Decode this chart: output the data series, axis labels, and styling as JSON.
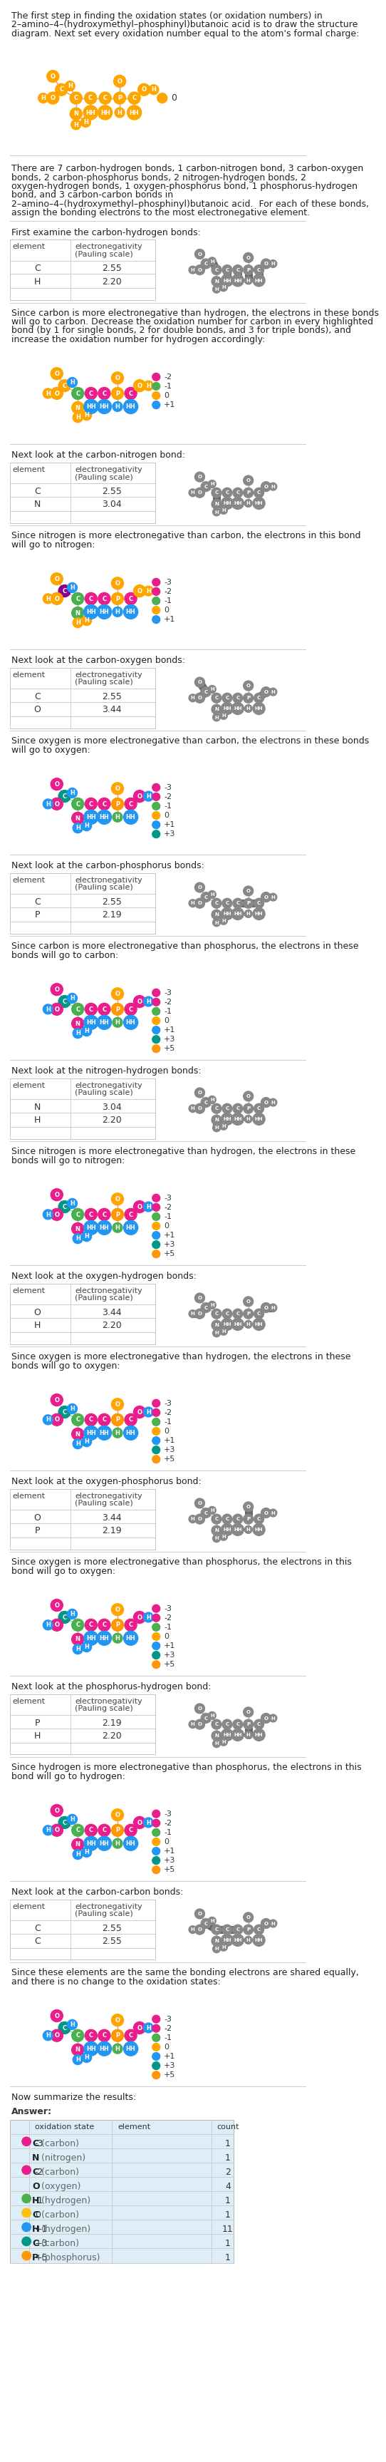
{
  "title_text": "The first step in finding the oxidation states (or oxidation numbers) in\n2–amino–4–(hydroxymethyl–phosphinyl)butanoic acid is to draw the structure\ndiagram. Next set every oxidation number equal to the atom's formal charge:",
  "bond_text": "There are 7 carbon-hydrogen bonds, 1 carbon-nitrogen bond, 3 carbon-oxygen\nbonds, 2 carbon-phosphorus bonds, 2 nitrogen-hydrogen bonds, 2\noxygen-hydrogen bonds, 1 oxygen-phosphorus bond, 1 phosphorus-hydrogen\nbond, and 3 carbon-carbon bonds in\n2–amino–4–(hydroxymethyl–phosphinyl)butanoic acid.  For each of these bonds,\nassign the bonding electrons to the most electronegative element.",
  "sections": [
    {
      "intro": "First examine the carbon-hydrogen bonds:",
      "element1": "C",
      "en1": 2.55,
      "element2": "H",
      "en2": 2.2,
      "conclusion": "Since carbon is more electronegative than hydrogen, the electrons in these bonds\nwill go to carbon. Decrease the oxidation number for carbon in every highlighted\nbond (by 1 for single bonds, 2 for double bonds, and 3 for triple bonds), and\nincrease the oxidation number for hydrogen accordingly:",
      "diagram_type": "CH",
      "result_legend": [
        {
          "color": "#e91e8c",
          "label": "-2"
        },
        {
          "color": "#4caf50",
          "label": "-1"
        },
        {
          "color": "#FFA500",
          "label": "0"
        },
        {
          "color": "#2196f3",
          "label": "+1"
        }
      ]
    },
    {
      "intro": "Next look at the carbon-nitrogen bond:",
      "element1": "C",
      "en1": 2.55,
      "element2": "N",
      "en2": 3.04,
      "conclusion": "Since nitrogen is more electronegative than carbon, the electrons in this bond\nwill go to nitrogen:",
      "diagram_type": "CN",
      "result_legend": [
        {
          "color": "#e91e8c",
          "label": "-3"
        },
        {
          "color": "#e91e8c",
          "label": "-2"
        },
        {
          "color": "#4caf50",
          "label": "-1"
        },
        {
          "color": "#FFA500",
          "label": "0"
        },
        {
          "color": "#2196f3",
          "label": "+1"
        }
      ]
    },
    {
      "intro": "Next look at the carbon-oxygen bonds:",
      "element1": "C",
      "en1": 2.55,
      "element2": "O",
      "en2": 3.44,
      "conclusion": "Since oxygen is more electronegative than carbon, the electrons in these bonds\nwill go to oxygen:",
      "diagram_type": "CO",
      "result_legend": [
        {
          "color": "#e91e8c",
          "label": "-3"
        },
        {
          "color": "#e91e8c",
          "label": "-2"
        },
        {
          "color": "#4caf50",
          "label": "-1"
        },
        {
          "color": "#FFA500",
          "label": "0"
        },
        {
          "color": "#2196f3",
          "label": "+1"
        },
        {
          "color": "#009688",
          "label": "+3"
        }
      ]
    },
    {
      "intro": "Next look at the carbon-phosphorus bonds:",
      "element1": "C",
      "en1": 2.55,
      "element2": "P",
      "en2": 2.19,
      "conclusion": "Since carbon is more electronegative than phosphorus, the electrons in these\nbonds will go to carbon:",
      "diagram_type": "CP",
      "result_legend": [
        {
          "color": "#e91e8c",
          "label": "-3"
        },
        {
          "color": "#e91e8c",
          "label": "-2"
        },
        {
          "color": "#4caf50",
          "label": "-1"
        },
        {
          "color": "#FFA500",
          "label": "0"
        },
        {
          "color": "#2196f3",
          "label": "+1"
        },
        {
          "color": "#009688",
          "label": "+3"
        },
        {
          "color": "#ff9800",
          "label": "+5"
        }
      ]
    },
    {
      "intro": "Next look at the nitrogen-hydrogen bonds:",
      "element1": "N",
      "en1": 3.04,
      "element2": "H",
      "en2": 2.2,
      "conclusion": "Since nitrogen is more electronegative than hydrogen, the electrons in these\nbonds will go to nitrogen:",
      "diagram_type": "NH",
      "result_legend": [
        {
          "color": "#e91e8c",
          "label": "-3"
        },
        {
          "color": "#e91e8c",
          "label": "-2"
        },
        {
          "color": "#4caf50",
          "label": "-1"
        },
        {
          "color": "#FFA500",
          "label": "0"
        },
        {
          "color": "#2196f3",
          "label": "+1"
        },
        {
          "color": "#009688",
          "label": "+3"
        },
        {
          "color": "#ff9800",
          "label": "+5"
        }
      ]
    },
    {
      "intro": "Next look at the oxygen-hydrogen bonds:",
      "element1": "O",
      "en1": 3.44,
      "element2": "H",
      "en2": 2.2,
      "conclusion": "Since oxygen is more electronegative than hydrogen, the electrons in these\nbonds will go to oxygen:",
      "diagram_type": "OH",
      "result_legend": [
        {
          "color": "#e91e8c",
          "label": "-3"
        },
        {
          "color": "#e91e8c",
          "label": "-2"
        },
        {
          "color": "#4caf50",
          "label": "-1"
        },
        {
          "color": "#FFA500",
          "label": "0"
        },
        {
          "color": "#2196f3",
          "label": "+1"
        },
        {
          "color": "#009688",
          "label": "+3"
        },
        {
          "color": "#ff9800",
          "label": "+5"
        }
      ]
    },
    {
      "intro": "Next look at the oxygen-phosphorus bond:",
      "element1": "O",
      "en1": 3.44,
      "element2": "P",
      "en2": 2.19,
      "conclusion": "Since oxygen is more electronegative than phosphorus, the electrons in this\nbond will go to oxygen:",
      "diagram_type": "OP",
      "result_legend": [
        {
          "color": "#e91e8c",
          "label": "-3"
        },
        {
          "color": "#e91e8c",
          "label": "-2"
        },
        {
          "color": "#4caf50",
          "label": "-1"
        },
        {
          "color": "#FFA500",
          "label": "0"
        },
        {
          "color": "#2196f3",
          "label": "+1"
        },
        {
          "color": "#009688",
          "label": "+3"
        },
        {
          "color": "#ff9800",
          "label": "+5"
        }
      ]
    },
    {
      "intro": "Next look at the phosphorus-hydrogen bond:",
      "element1": "P",
      "en1": 2.19,
      "element2": "H",
      "en2": 2.2,
      "conclusion": "Since hydrogen is more electronegative than phosphorus, the electrons in this\nbond will go to hydrogen:",
      "diagram_type": "PH",
      "result_legend": [
        {
          "color": "#e91e8c",
          "label": "-3"
        },
        {
          "color": "#e91e8c",
          "label": "-2"
        },
        {
          "color": "#4caf50",
          "label": "-1"
        },
        {
          "color": "#FFA500",
          "label": "0"
        },
        {
          "color": "#2196f3",
          "label": "+1"
        },
        {
          "color": "#009688",
          "label": "+3"
        },
        {
          "color": "#ff9800",
          "label": "+5"
        }
      ]
    },
    {
      "intro": "Next look at the carbon-carbon bonds:",
      "element1": "C",
      "en1": 2.55,
      "element2": "C",
      "en2": 2.55,
      "conclusion": "Since these elements are the same the bonding electrons are shared equally,\nand there is no change to the oxidation states:",
      "diagram_type": "CC",
      "result_legend": [
        {
          "color": "#e91e8c",
          "label": "-3"
        },
        {
          "color": "#e91e8c",
          "label": "-2"
        },
        {
          "color": "#4caf50",
          "label": "-1"
        },
        {
          "color": "#FFA500",
          "label": "0"
        },
        {
          "color": "#2196f3",
          "label": "+1"
        },
        {
          "color": "#009688",
          "label": "+3"
        },
        {
          "color": "#ff9800",
          "label": "+5"
        }
      ]
    }
  ],
  "summary_title": "Now summarize the results:",
  "answer_label": "Answer:",
  "summary_headers": [
    "",
    "oxidation state",
    "element",
    "count"
  ],
  "summary_rows": [
    {
      "dot_color": "#e91e8c",
      "ox_state": "-3",
      "element_bold": "C",
      "element_rest": " (carbon)",
      "count": "1"
    },
    {
      "dot_color": null,
      "ox_state": "",
      "element_bold": "N",
      "element_rest": " (nitrogen)",
      "count": "1"
    },
    {
      "dot_color": "#e91e8c",
      "ox_state": "-2",
      "element_bold": "C",
      "element_rest": " (carbon)",
      "count": "2"
    },
    {
      "dot_color": null,
      "ox_state": "",
      "element_bold": "O",
      "element_rest": " (oxygen)",
      "count": "4"
    },
    {
      "dot_color": "#4caf50",
      "ox_state": "-1",
      "element_bold": "H",
      "element_rest": " (hydrogen)",
      "count": "1"
    },
    {
      "dot_color": "#ffc107",
      "ox_state": "0",
      "element_bold": "C",
      "element_rest": " (carbon)",
      "count": "1"
    },
    {
      "dot_color": "#2196f3",
      "ox_state": "+1",
      "element_bold": "H",
      "element_rest": " (hydrogen)",
      "count": "11"
    },
    {
      "dot_color": "#009688",
      "ox_state": "+3",
      "element_bold": "C",
      "element_rest": " (carbon)",
      "count": "1"
    },
    {
      "dot_color": "#ff9800",
      "ox_state": "+5",
      "element_bold": "P",
      "element_rest": " (phosphorus)",
      "count": "1"
    }
  ],
  "orange": "#FFA500",
  "gray_atom": "#888888",
  "gray_hl": "#666666",
  "pink": "#e91e8c",
  "green": "#4caf50",
  "blue": "#2196f3",
  "teal": "#009688",
  "yellow": "#ffc107",
  "amber": "#ff9800",
  "bg_color": "#ffffff",
  "table_bg": "#ddeef8"
}
